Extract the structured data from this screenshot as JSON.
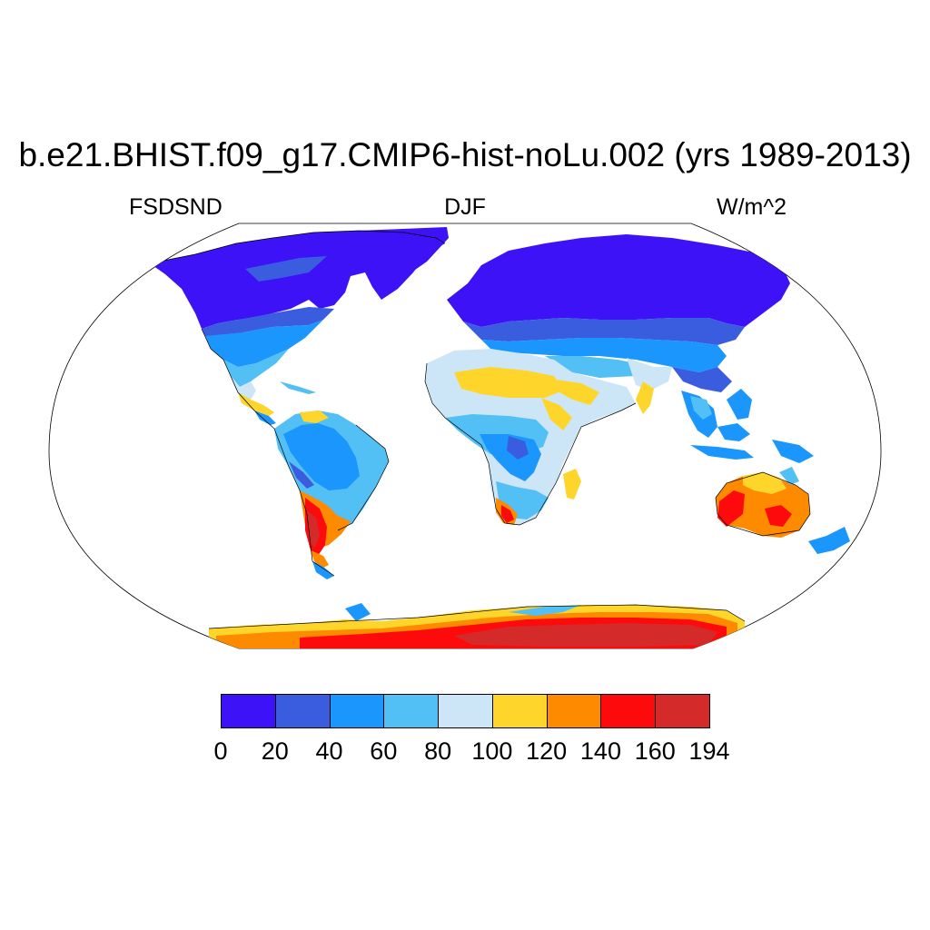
{
  "title": "b.e21.BHIST.f09_g17.CMIP6-hist-noLu.002 (yrs 1989-2013)",
  "variable": "FSDSND",
  "season": "DJF",
  "units": "W/m^2",
  "map": {
    "projection": "Robinson",
    "field": "surface near-IR diffuse downwelling shortwave, land only",
    "ocean_color": "#ffffff",
    "coastlines": "black"
  },
  "colorbar": {
    "levels": [
      "0",
      "20",
      "40",
      "60",
      "80",
      "100",
      "120",
      "140",
      "160",
      "194"
    ],
    "colors": [
      "#3d12f7",
      "#3a5de0",
      "#1a96fc",
      "#52c0f5",
      "#cde6f7",
      "#fed52a",
      "#fe8a00",
      "#fd0a0c",
      "#d42a2a"
    ]
  }
}
